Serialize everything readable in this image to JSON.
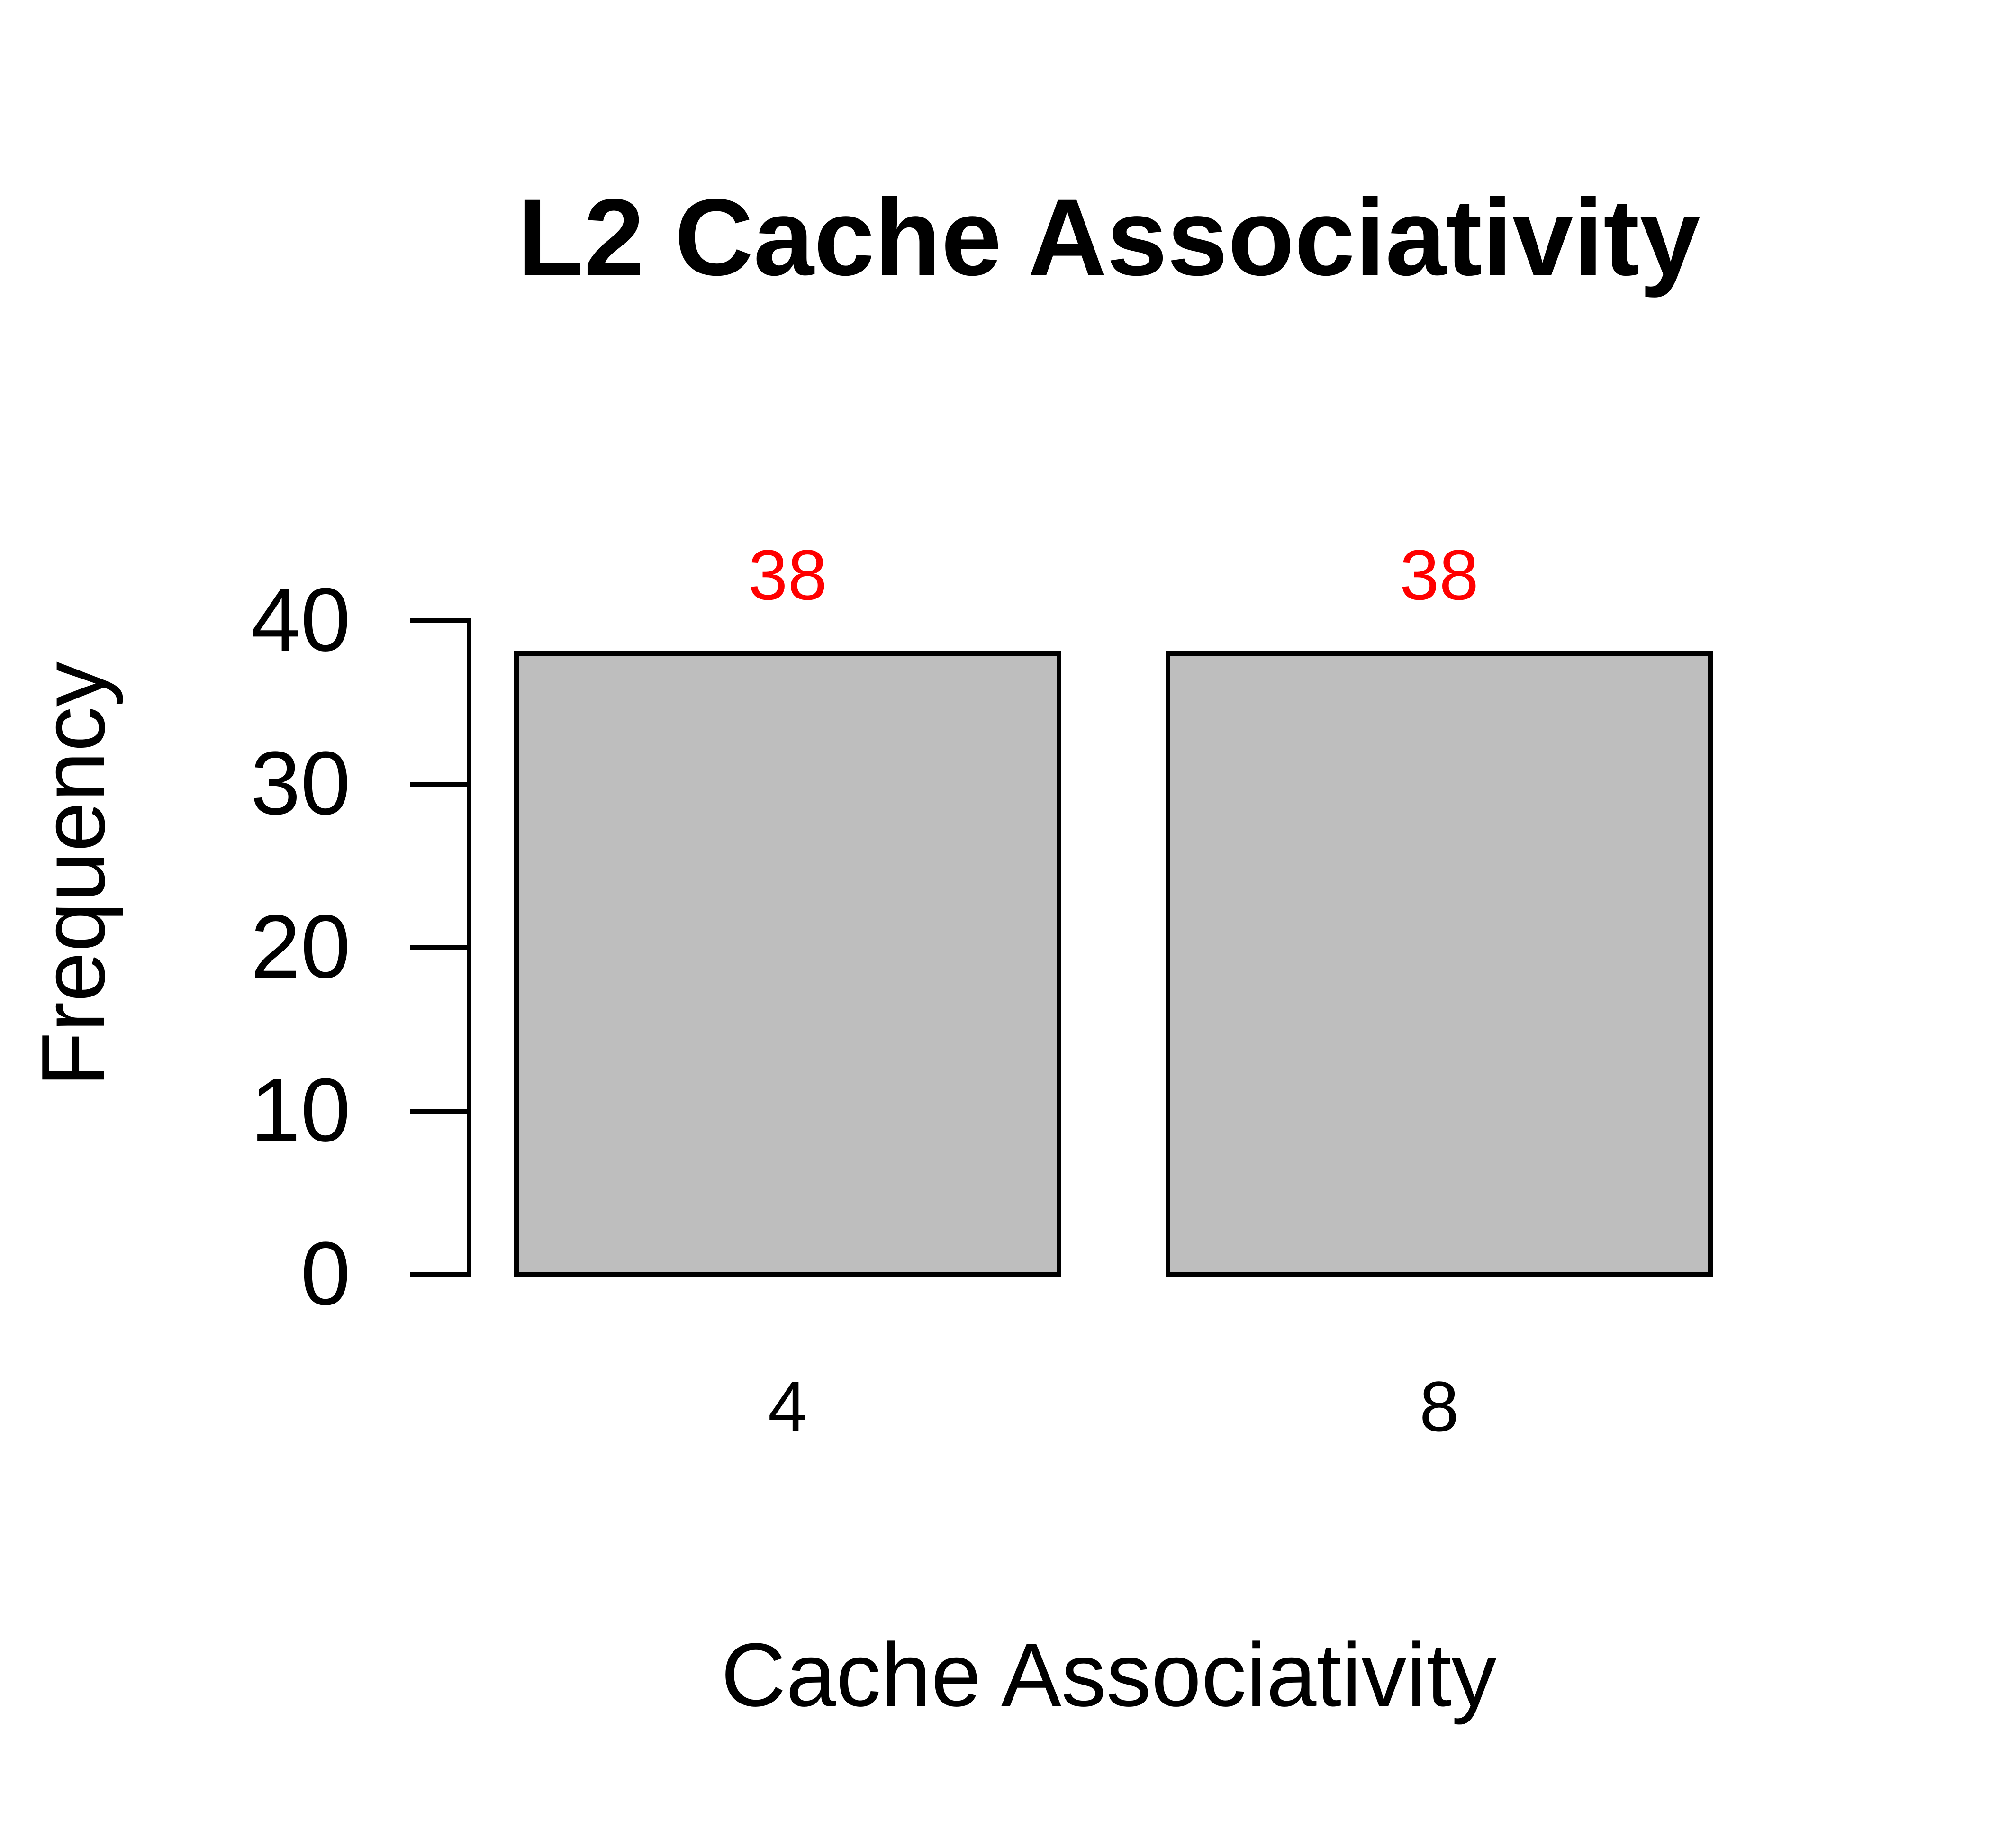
{
  "chart_data": {
    "type": "bar",
    "title": "L2 Cache Associativity",
    "xlabel": "Cache Associativity",
    "ylabel": "Frequency",
    "categories": [
      "4",
      "8"
    ],
    "values": [
      38,
      38
    ],
    "data_labels": [
      "38",
      "38"
    ],
    "ylim": [
      0,
      40
    ],
    "yticks": [
      "0",
      "10",
      "20",
      "30",
      "40"
    ],
    "grid": false,
    "legend": "none",
    "colors": {
      "bar_fill": "#bebebe",
      "bar_stroke": "#000000",
      "data_label": "#ff0000",
      "axis": "#000000"
    }
  }
}
